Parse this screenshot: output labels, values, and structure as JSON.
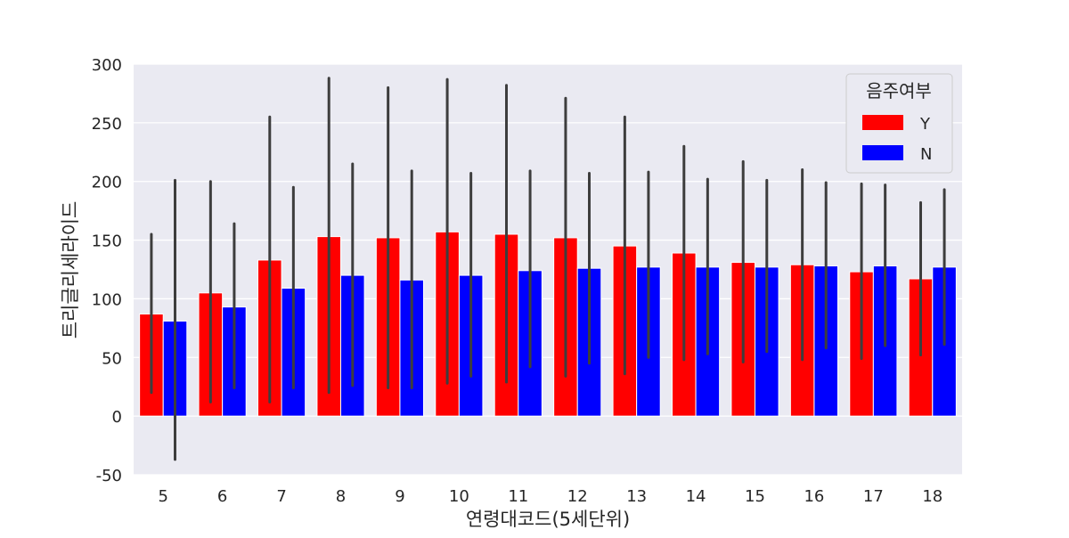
{
  "chart_data": {
    "type": "bar",
    "xlabel": "연령대코드(5세단위)",
    "ylabel": "트리글리세라이드",
    "ylim": [
      -50,
      300
    ],
    "yticks": [
      -50,
      0,
      50,
      100,
      150,
      200,
      250,
      300
    ],
    "grid": true,
    "legend_position": "top-right",
    "legend_title": "음주여부",
    "categories": [
      "5",
      "6",
      "7",
      "8",
      "9",
      "10",
      "11",
      "12",
      "13",
      "14",
      "15",
      "16",
      "17",
      "18"
    ],
    "series": [
      {
        "name": "Y",
        "color": "#ff0000",
        "values": [
          87,
          105,
          133,
          153,
          152,
          157,
          155,
          152,
          145,
          139,
          131,
          129,
          123,
          117
        ],
        "error_low": [
          20,
          12,
          12,
          20,
          24,
          28,
          29,
          34,
          36,
          48,
          46,
          48,
          49,
          52
        ],
        "error_high": [
          155,
          200,
          255,
          288,
          280,
          287,
          282,
          271,
          255,
          230,
          217,
          210,
          198,
          182
        ]
      },
      {
        "name": "N",
        "color": "#0000ff",
        "values": [
          81,
          93,
          109,
          120,
          116,
          120,
          124,
          126,
          127,
          127,
          127,
          128,
          128,
          127
        ],
        "error_low": [
          -37,
          24,
          24,
          26,
          24,
          34,
          42,
          45,
          50,
          53,
          55,
          58,
          60,
          61
        ],
        "error_high": [
          201,
          164,
          195,
          215,
          209,
          207,
          209,
          207,
          208,
          202,
          201,
          199,
          197,
          193
        ]
      }
    ]
  }
}
